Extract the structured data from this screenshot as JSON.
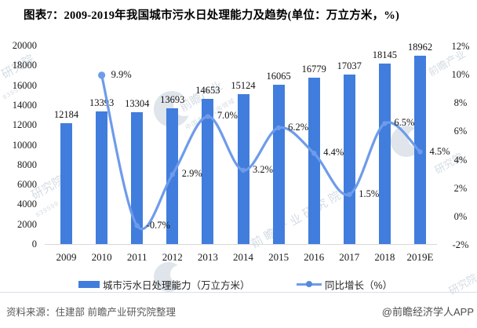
{
  "title": "图表7：2009-2019年我国城市污水日处理能力及趋势(单位：万立方米，%)",
  "chart_data": {
    "type": "bar+line combo",
    "categories": [
      "2009",
      "2010",
      "2011",
      "2012",
      "2013",
      "2014",
      "2015",
      "2016",
      "2017",
      "2018",
      "2019E"
    ],
    "series": [
      {
        "name": "城市污水日处理能力（万立方米）",
        "type": "bar",
        "axis": "left",
        "color": "#417DDC",
        "values": [
          12184,
          13393,
          13304,
          13693,
          14653,
          15124,
          16065,
          16779,
          17037,
          18145,
          18962
        ],
        "value_labels": [
          "12184",
          "13393",
          "13304",
          "13693",
          "14653",
          "15124",
          "16065",
          "16779",
          "17037",
          "18145",
          "18962"
        ]
      },
      {
        "name": "同比增长（%）",
        "type": "line",
        "axis": "right",
        "color": "#6E9BEB",
        "values": [
          null,
          9.9,
          -0.7,
          2.9,
          7.0,
          3.2,
          6.2,
          4.4,
          1.5,
          6.5,
          4.5
        ],
        "value_labels": [
          "",
          "9.9%",
          "-0.7%",
          "2.9%",
          "7.0%",
          "3.2%",
          "6.2%",
          "4.4%",
          "1.5%",
          "6.5%",
          "4.5%"
        ]
      }
    ],
    "left_axis": {
      "min": 0,
      "max": 20000,
      "step": 2000,
      "ticks": [
        "20000",
        "18000",
        "16000",
        "14000",
        "12000",
        "10000",
        "8000",
        "6000",
        "4000",
        "2000",
        "0"
      ]
    },
    "right_axis": {
      "min": -2,
      "max": 12,
      "step": 2,
      "ticks": [
        "12%",
        "10%",
        "8%",
        "6%",
        "4%",
        "2%",
        "0%",
        "-2%"
      ]
    },
    "grid": false,
    "legend_position": "bottom"
  },
  "legend": {
    "bar_label": "城市污水日处理能力（万立方米）",
    "line_label": "同比增长（%）"
  },
  "footer": {
    "source": "资料来源：住建部 前瞻产业研究院整理",
    "brand": "@前瞻经济学人APP"
  },
  "watermarks": {
    "full": "前瞻产业研究院",
    "brand_short": "前瞻产业",
    "institute": "研究院",
    "tagline": "中国产业咨询领域",
    "stock_code": "839599"
  }
}
